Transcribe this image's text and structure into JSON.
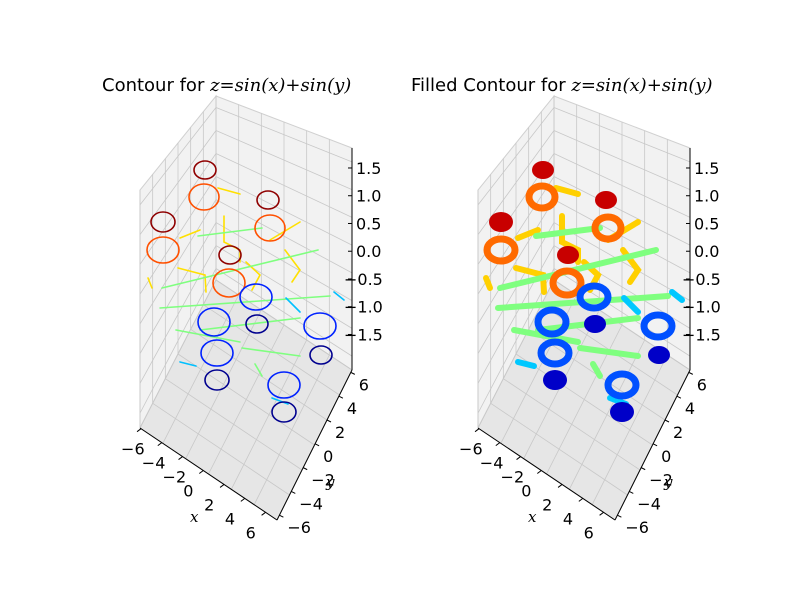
{
  "chart_data": [
    {
      "type": "contour3d",
      "title_prefix": "Contour for ",
      "title_math": "z=sin(x)+sin(y)",
      "xlabel": "x",
      "ylabel": "y",
      "x_ticks": [
        "−6",
        "−4",
        "−2",
        "0",
        "2",
        "4",
        "6"
      ],
      "y_ticks": [
        "−6",
        "−4",
        "−2",
        "0",
        "2",
        "4",
        "6"
      ],
      "z_ticks": [
        "1.5",
        "1.0",
        "0.5",
        "0.0",
        "−0.5",
        "−1.0",
        "−1.5"
      ],
      "xlim": [
        -6,
        6
      ],
      "ylim": [
        -6,
        6
      ],
      "zlim": [
        -2,
        2
      ],
      "levels": [
        -1.75,
        -1.25,
        -0.75,
        -0.25,
        0.25,
        0.75,
        1.25,
        1.75
      ],
      "filled": false
    },
    {
      "type": "filled-contour3d",
      "title_prefix": "Filled Contour for ",
      "title_math": "z=sin(x)+sin(y)",
      "xlabel": "x",
      "ylabel": "y",
      "x_ticks": [
        "−6",
        "−4",
        "−2",
        "0",
        "2",
        "4",
        "6"
      ],
      "y_ticks": [
        "−6",
        "−4",
        "−2",
        "0",
        "2",
        "4",
        "6"
      ],
      "z_ticks": [
        "1.5",
        "1.0",
        "0.5",
        "0.0",
        "−0.5",
        "−1.0",
        "−1.5"
      ],
      "xlim": [
        -6,
        6
      ],
      "ylim": [
        -6,
        6
      ],
      "zlim": [
        -2,
        2
      ],
      "levels": [
        -1.75,
        -1.25,
        -0.75,
        -0.25,
        0.25,
        0.75,
        1.25,
        1.75
      ],
      "filled": true
    }
  ],
  "colors": {
    "level_colors": [
      "#00008f",
      "#0022ff",
      "#00c0ff",
      "#7fff7f",
      "#ffe000",
      "#ff5000",
      "#8f0000"
    ],
    "filled_colors": [
      "#0000c8",
      "#0050ff",
      "#00c8ff",
      "#7fff7f",
      "#ffd000",
      "#ff6a00",
      "#c80000"
    ]
  }
}
